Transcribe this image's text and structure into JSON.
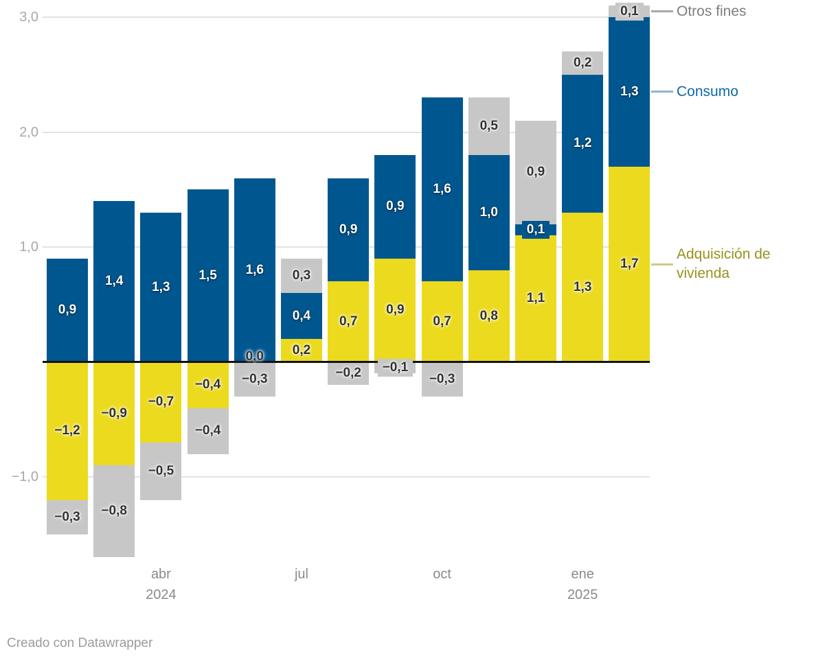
{
  "chart_data": {
    "type": "bar",
    "stacked": true,
    "orientation": "vertical",
    "n_bars": 13,
    "categories": [
      "",
      "",
      "abr 2024",
      "",
      "",
      "jul",
      "",
      "",
      "oct",
      "",
      "",
      "ene 2025",
      ""
    ],
    "series": [
      {
        "id": "vivienda",
        "name": "Adquisición de vivienda",
        "color": "#ecda1e",
        "label_color": "#333333",
        "values": [
          -1.2,
          -0.9,
          -0.7,
          -0.4,
          0.0,
          0.2,
          0.7,
          0.9,
          0.7,
          0.8,
          1.1,
          1.3,
          1.7
        ],
        "labels": [
          "−1,2",
          "−0,9",
          "−0,7",
          "−0,4",
          "0,0",
          "0,2",
          "0,7",
          "0,9",
          "0,7",
          "0,8",
          "1,1",
          "1,3",
          "1,7"
        ]
      },
      {
        "id": "consumo",
        "name": "Consumo",
        "color": "#00578f",
        "label_color": "#ffffff",
        "values": [
          0.9,
          1.4,
          1.3,
          1.5,
          1.6,
          0.4,
          0.9,
          0.9,
          1.6,
          1.0,
          0.1,
          1.2,
          1.3
        ],
        "labels": [
          "0,9",
          "1,4",
          "1,3",
          "1,5",
          "1,6",
          "0,4",
          "0,9",
          "0,9",
          "1,6",
          "1,0",
          "0,1",
          "1,2",
          "1,3"
        ]
      },
      {
        "id": "otros",
        "name": "Otros fines",
        "color": "#c7c7c7",
        "label_color": "#333333",
        "values": [
          -0.3,
          -0.8,
          -0.5,
          -0.4,
          -0.3,
          0.3,
          -0.2,
          -0.1,
          -0.3,
          0.5,
          0.9,
          0.2,
          0.1
        ],
        "labels": [
          "−0,3",
          "−0,8",
          "−0,5",
          "−0,4",
          "−0,3",
          "0,3",
          "−0,2",
          "−0,1",
          "−0,3",
          "0,5",
          "0,9",
          "0,2",
          "0,1"
        ]
      }
    ],
    "y_ticks": [
      {
        "label": "3,0",
        "value": 3.0
      },
      {
        "label": "2,0",
        "value": 2.0
      },
      {
        "label": "1,0",
        "value": 1.0
      },
      {
        "label": "−1,0",
        "value": -1.0
      }
    ],
    "x_ticks": [
      {
        "bar_index": 2,
        "lines": [
          "abr",
          "2024"
        ]
      },
      {
        "bar_index": 5,
        "lines": [
          "jul"
        ]
      },
      {
        "bar_index": 8,
        "lines": [
          "oct"
        ]
      },
      {
        "bar_index": 11,
        "lines": [
          "ene",
          "2025"
        ]
      }
    ],
    "ylim": [
      -1.55,
      3.1
    ],
    "grid": "horizontal",
    "zero_line": true,
    "legend_position": "right"
  },
  "legend": [
    {
      "series": "otros",
      "label": "Otros fines",
      "lines": [
        "Otros fines"
      ],
      "text_color": "#7e7e7e",
      "line_color": "#a8a8a8"
    },
    {
      "series": "consumo",
      "label": "Consumo",
      "lines": [
        "Consumo"
      ],
      "text_color": "#1168a8",
      "line_color": "#8db5d3"
    },
    {
      "series": "vivienda",
      "label": "Adquisición de vivienda",
      "lines": [
        "Adquisición de",
        "vivienda"
      ],
      "text_color": "#97911d",
      "line_color": "#cdc98c"
    }
  ],
  "footer": {
    "credit": "Creado con Datawrapper"
  },
  "colors": {
    "background": "#ffffff",
    "gridline": "#e2e2e2",
    "zero_line": "#121212",
    "y_tick_text": "#a8a8a8",
    "x_tick_text": "#8a8a8a",
    "credit_text": "#9c9c9c"
  }
}
